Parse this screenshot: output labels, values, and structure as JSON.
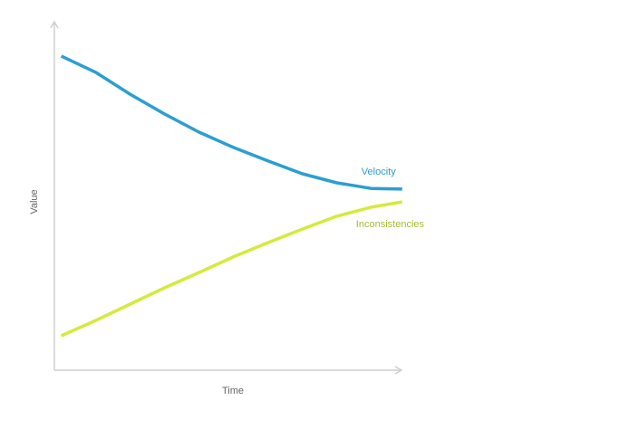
{
  "chart_data": {
    "type": "line",
    "x_label": "Time",
    "y_label": "Value",
    "x": [
      2,
      12,
      22,
      32,
      42,
      52,
      62,
      72,
      82,
      92,
      101
    ],
    "xlim": [
      0,
      100
    ],
    "ylim": [
      0,
      100
    ],
    "series": [
      {
        "name": "Velocity",
        "color": "#2b9fd0",
        "label_color": "#2a9dcc",
        "values": [
          90.4,
          85.7,
          79.4,
          73.7,
          68.5,
          64.1,
          60.2,
          56.5,
          53.9,
          52.3,
          52.1
        ]
      },
      {
        "name": "Inconsistencies",
        "color": "#d5ea3c",
        "label_color": "#a3bd34",
        "values": [
          9.9,
          14.3,
          19.0,
          23.7,
          28.1,
          32.6,
          36.7,
          40.6,
          44.3,
          46.9,
          48.4
        ]
      }
    ]
  }
}
